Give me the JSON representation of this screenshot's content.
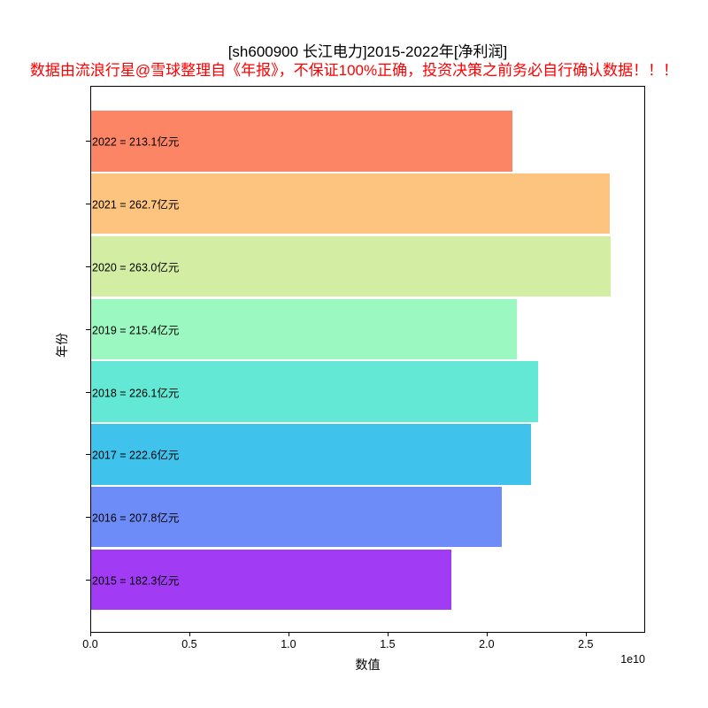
{
  "figure": {
    "title": "[sh600900 长江电力]2015-2022年[净利润]",
    "subtitle": "数据由流浪行星@雪球整理自《年报》，不保证100%正确，投资决策之前务必自行确认数据！！！",
    "subtitle_color": "#ff0000",
    "background_color": "#ffffff",
    "axis_color": "#000000"
  },
  "chart_data": {
    "type": "bar",
    "orientation": "horizontal",
    "title": "[sh600900 长江电力]2015-2022年[净利润]",
    "xlabel": "数值",
    "ylabel": "年份",
    "x_offset_label": "1e10",
    "xlim": [
      0,
      28000000000
    ],
    "grid": false,
    "legend": false,
    "categories": [
      "2022",
      "2021",
      "2020",
      "2019",
      "2018",
      "2017",
      "2016",
      "2015"
    ],
    "values_yi_yuan": [
      213.1,
      262.7,
      263.0,
      215.4,
      226.1,
      222.6,
      207.8,
      182.3
    ],
    "bars": [
      {
        "year": "2022",
        "value": 21310000000,
        "value_yi": 213.1,
        "label": "2022 = 213.1亿元",
        "color": "#fb8564"
      },
      {
        "year": "2021",
        "value": 26270000000,
        "value_yi": 262.7,
        "label": "2021 = 262.7亿元",
        "color": "#fcc47f"
      },
      {
        "year": "2020",
        "value": 26300000000,
        "value_yi": 263.0,
        "label": "2020 = 263.0亿元",
        "color": "#d3eda3"
      },
      {
        "year": "2019",
        "value": 21540000000,
        "value_yi": 215.4,
        "label": "2019 = 215.4亿元",
        "color": "#9bf8c1"
      },
      {
        "year": "2018",
        "value": 22610000000,
        "value_yi": 226.1,
        "label": "2018 = 226.1亿元",
        "color": "#63e8d5"
      },
      {
        "year": "2017",
        "value": 22260000000,
        "value_yi": 222.6,
        "label": "2017 = 222.6亿元",
        "color": "#3fc2ec"
      },
      {
        "year": "2016",
        "value": 20780000000,
        "value_yi": 207.8,
        "label": "2016 = 207.8亿元",
        "color": "#6e8cf7"
      },
      {
        "year": "2015",
        "value": 18230000000,
        "value_yi": 182.3,
        "label": "2015 = 182.3亿元",
        "color": "#a23cf4"
      }
    ],
    "x_ticks": [
      {
        "label": "0.0",
        "value": 0
      },
      {
        "label": "0.5",
        "value": 5000000000
      },
      {
        "label": "1.0",
        "value": 10000000000
      },
      {
        "label": "1.5",
        "value": 15000000000
      },
      {
        "label": "2.0",
        "value": 20000000000
      },
      {
        "label": "2.5",
        "value": 25000000000
      }
    ]
  }
}
